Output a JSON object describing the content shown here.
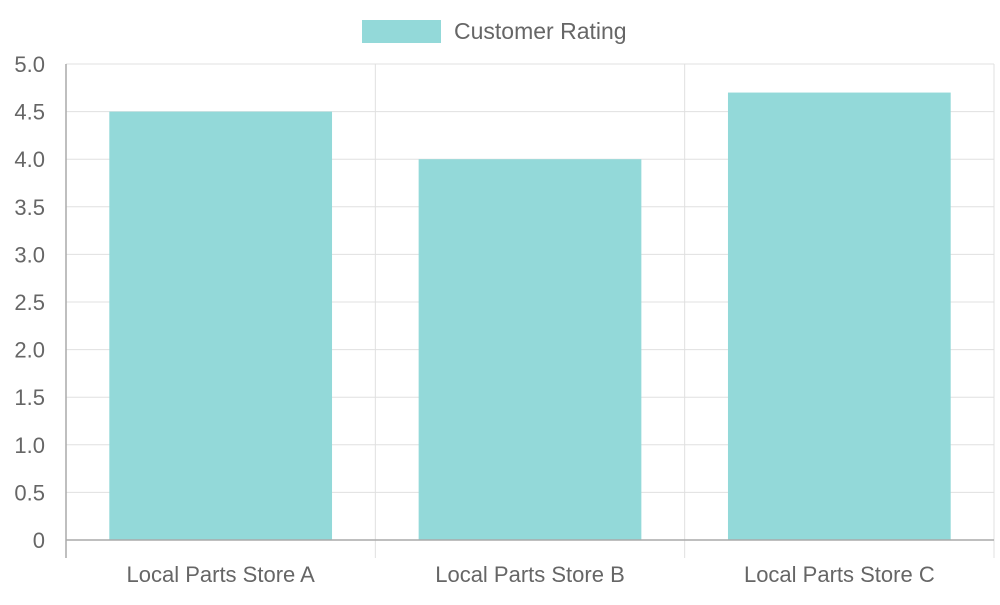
{
  "chart_data": {
    "type": "bar",
    "categories": [
      "Local Parts Store A",
      "Local Parts Store B",
      "Local Parts Store C"
    ],
    "series": [
      {
        "name": "Customer Rating",
        "values": [
          4.5,
          4.0,
          4.7
        ],
        "color": "#93d9d9",
        "border_color": "#4bc0c0"
      }
    ],
    "yticks": [
      "0",
      "0.5",
      "1.0",
      "1.5",
      "2.0",
      "2.5",
      "3.0",
      "3.5",
      "4.0",
      "4.5",
      "5.0"
    ],
    "ylim": [
      0,
      5
    ],
    "ystep": 0.5,
    "grid": true,
    "legend_position": "top",
    "title": "",
    "xlabel": "",
    "ylabel": ""
  }
}
